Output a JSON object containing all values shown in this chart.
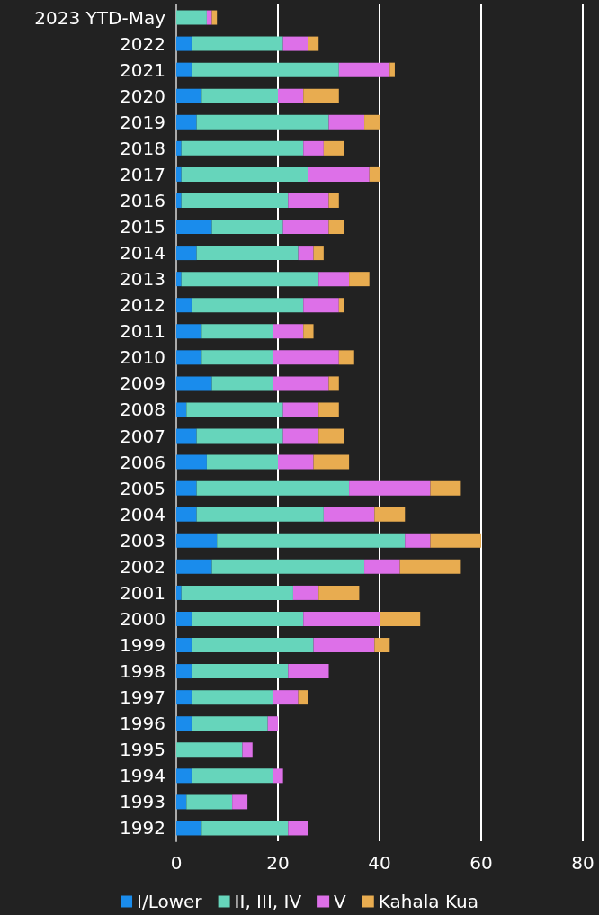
{
  "chart_data": {
    "type": "bar",
    "orientation": "horizontal",
    "stacked": true,
    "categories": [
      "2023 YTD-May",
      "2022",
      "2021",
      "2020",
      "2019",
      "2018",
      "2017",
      "2016",
      "2015",
      "2014",
      "2013",
      "2012",
      "2011",
      "2010",
      "2009",
      "2008",
      "2007",
      "2006",
      "2005",
      "2004",
      "2003",
      "2002",
      "2001",
      "2000",
      "1999",
      "1998",
      "1997",
      "1996",
      "1995",
      "1994",
      "1993",
      "1992"
    ],
    "series": [
      {
        "name": "I/Lower",
        "color": "#1a8cec",
        "values": [
          0,
          3,
          3,
          5,
          4,
          1,
          1,
          1,
          7,
          4,
          1,
          3,
          5,
          5,
          7,
          2,
          4,
          6,
          4,
          4,
          8,
          7,
          1,
          3,
          3,
          3,
          3,
          3,
          0,
          3,
          2,
          5
        ]
      },
      {
        "name": "II, III, IV",
        "color": "#66d5bb",
        "values": [
          6,
          18,
          29,
          15,
          26,
          24,
          25,
          21,
          14,
          20,
          27,
          22,
          14,
          14,
          12,
          19,
          17,
          14,
          30,
          25,
          37,
          30,
          22,
          22,
          24,
          19,
          16,
          15,
          13,
          16,
          9,
          17
        ]
      },
      {
        "name": "V",
        "color": "#dd70e8",
        "values": [
          1,
          5,
          10,
          5,
          7,
          4,
          12,
          8,
          9,
          3,
          6,
          7,
          6,
          13,
          11,
          7,
          7,
          7,
          16,
          10,
          5,
          7,
          5,
          15,
          12,
          8,
          5,
          2,
          2,
          2,
          3,
          4
        ]
      },
      {
        "name": "Kahala Kua",
        "color": "#e8ac50",
        "values": [
          1,
          2,
          1,
          7,
          3,
          4,
          2,
          2,
          3,
          2,
          4,
          1,
          2,
          3,
          2,
          4,
          5,
          7,
          6,
          6,
          10,
          12,
          8,
          8,
          3,
          0,
          2,
          0,
          0,
          0,
          0,
          0
        ]
      }
    ],
    "xlim": [
      0,
      80
    ],
    "xticks": [
      0,
      20,
      40,
      60,
      80
    ],
    "grid": "x",
    "legend": "bottom"
  }
}
